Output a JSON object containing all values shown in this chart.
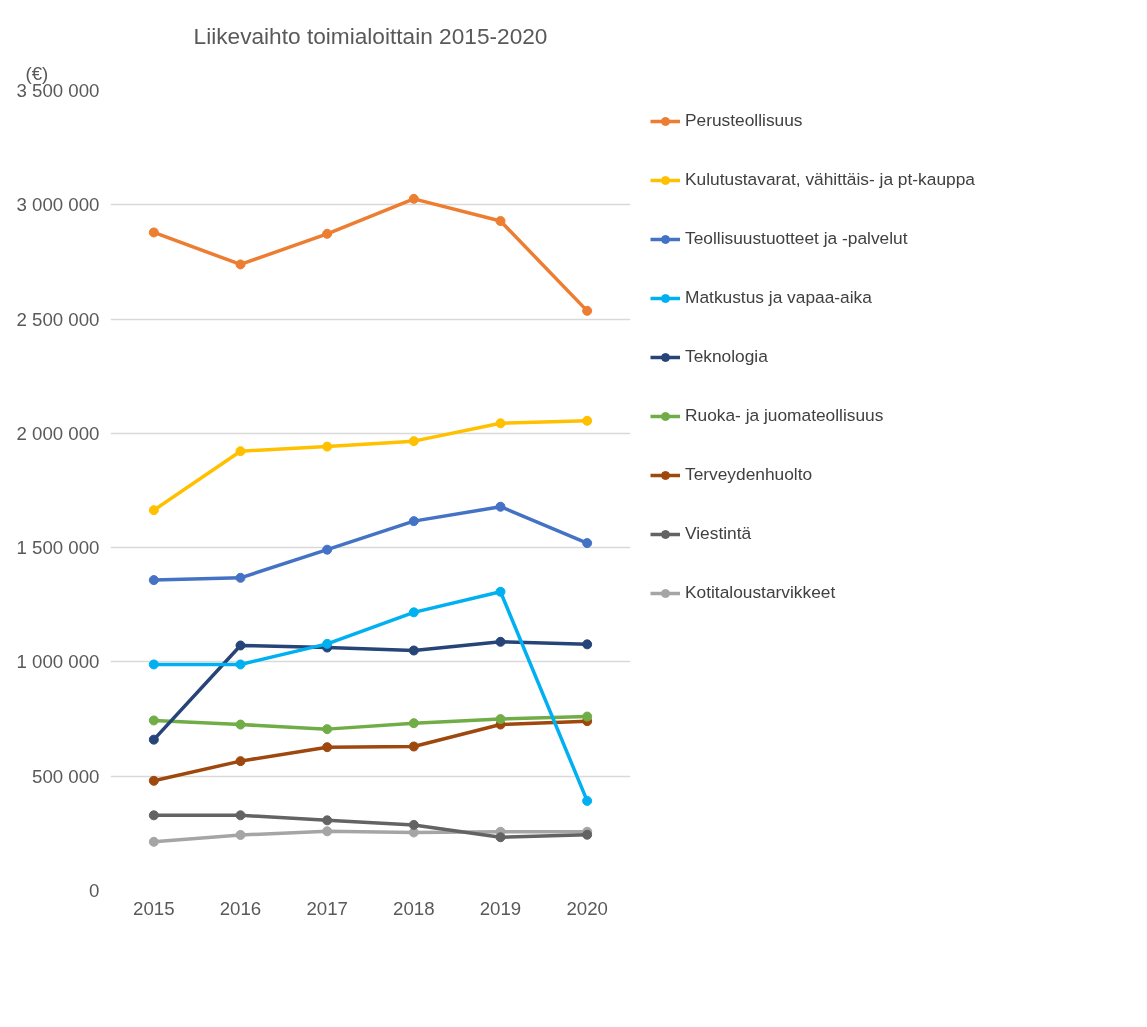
{
  "chart_data": {
    "type": "line",
    "title": "Liikevaihto toimialoittain 2015-2020",
    "ylabel": "(€)",
    "categories": [
      "2015",
      "2016",
      "2017",
      "2018",
      "2019",
      "2020"
    ],
    "series": [
      {
        "name": "Perusteollisuus",
        "color": "#ed7d31",
        "values": [
          2879000,
          2739000,
          2873000,
          3026000,
          2929000,
          2536000
        ]
      },
      {
        "name": "Kulutustavarat, vähittäis- ja pt-kauppa",
        "color": "#ffc000",
        "values": [
          1664000,
          1922000,
          1942000,
          1966000,
          2044000,
          2055000
        ]
      },
      {
        "name": "Teollisuustuotteet ja -palvelut",
        "color": "#4472c4",
        "values": [
          1358000,
          1368000,
          1491000,
          1616000,
          1679000,
          1520000
        ]
      },
      {
        "name": "Matkustus ja vapaa-aika",
        "color": "#00b0f0",
        "values": [
          989000,
          989000,
          1079000,
          1217000,
          1307000,
          392000
        ]
      },
      {
        "name": "Teknologia",
        "color": "#264478",
        "values": [
          660000,
          1072000,
          1063000,
          1050000,
          1088000,
          1077000
        ]
      },
      {
        "name": "Ruoka- ja juomateollisuus",
        "color": "#70ad47",
        "values": [
          744000,
          726000,
          706000,
          732000,
          750000,
          761000
        ]
      },
      {
        "name": "Terveydenhuolto",
        "color": "#9e480e",
        "values": [
          480000,
          566000,
          627000,
          630000,
          726000,
          741000
        ]
      },
      {
        "name": "Viestintä",
        "color": "#636363",
        "values": [
          329000,
          329000,
          307000,
          287000,
          233000,
          244000
        ]
      },
      {
        "name": "Kotitaloustarvikkeet",
        "color": "#a5a5a5",
        "values": [
          213000,
          243000,
          259000,
          254000,
          257000,
          257000
        ]
      }
    ],
    "ylim": [
      0,
      3500000
    ],
    "yticks": [
      {
        "value": 0,
        "label": "0"
      },
      {
        "value": 500000,
        "label": "500 000"
      },
      {
        "value": 1000000,
        "label": "1 000 000"
      },
      {
        "value": 1500000,
        "label": "1 500 000"
      },
      {
        "value": 2000000,
        "label": "2 000 000"
      },
      {
        "value": 2500000,
        "label": "2 500 000"
      },
      {
        "value": 3000000,
        "label": "3 000 000"
      },
      {
        "value": 3500000,
        "label": "3 500 000"
      }
    ],
    "grid": "y",
    "legend": "right",
    "marker": "circle",
    "line_style": "solid"
  }
}
